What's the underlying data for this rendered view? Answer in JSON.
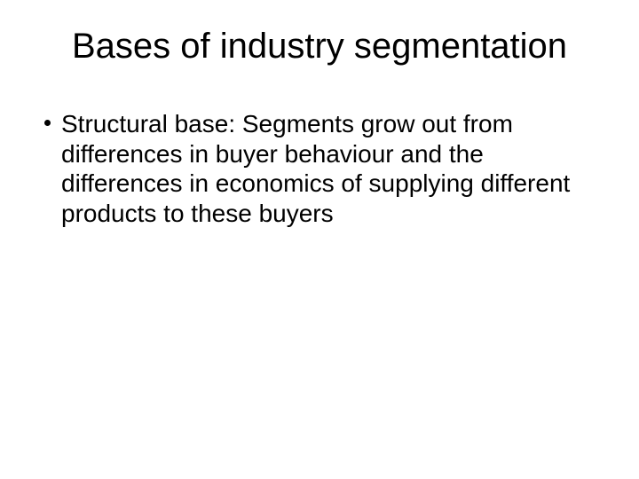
{
  "slide": {
    "title": "Bases of industry segmentation",
    "bullets": [
      {
        "text": "Structural base: Segments grow out from differences in buyer behaviour and the differences in economics of supplying different products to these buyers"
      }
    ]
  },
  "style": {
    "background_color": "#ffffff",
    "text_color": "#000000",
    "title_fontsize": 40,
    "title_fontweight": "normal",
    "body_fontsize": 28,
    "font_family": "Arial, Helvetica, sans-serif",
    "bullet_marker_color": "#000000",
    "bullet_marker_size": 7
  }
}
